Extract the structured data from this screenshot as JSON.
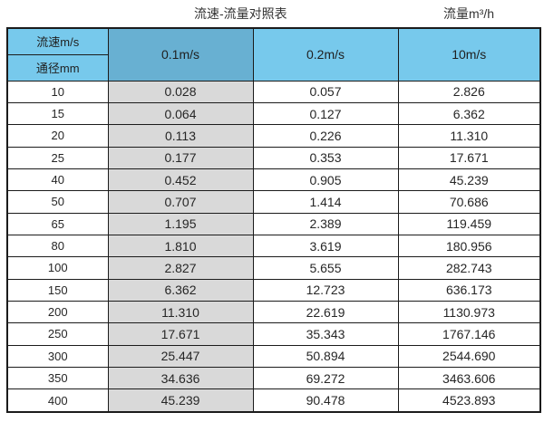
{
  "page": {
    "title_main": "流速-流量对照表",
    "title_right": "流量m³/h"
  },
  "table": {
    "corner": {
      "top": "流速m/s",
      "bottom": "通径mm"
    },
    "velocity_columns": [
      "0.1m/s",
      "0.2m/s",
      "10m/s"
    ],
    "rows": [
      {
        "diameter": "10",
        "values": [
          "0.028",
          "0.057",
          "2.826"
        ]
      },
      {
        "diameter": "15",
        "values": [
          "0.064",
          "0.127",
          "6.362"
        ]
      },
      {
        "diameter": "20",
        "values": [
          "0.113",
          "0.226",
          "11.310"
        ]
      },
      {
        "diameter": "25",
        "values": [
          "0.177",
          "0.353",
          "17.671"
        ]
      },
      {
        "diameter": "40",
        "values": [
          "0.452",
          "0.905",
          "45.239"
        ]
      },
      {
        "diameter": "50",
        "values": [
          "0.707",
          "1.414",
          "70.686"
        ]
      },
      {
        "diameter": "65",
        "values": [
          "1.195",
          "2.389",
          "119.459"
        ]
      },
      {
        "diameter": "80",
        "values": [
          "1.810",
          "3.619",
          "180.956"
        ]
      },
      {
        "diameter": "100",
        "values": [
          "2.827",
          "5.655",
          "282.743"
        ]
      },
      {
        "diameter": "150",
        "values": [
          "6.362",
          "12.723",
          "636.173"
        ]
      },
      {
        "diameter": "200",
        "values": [
          "11.310",
          "22.619",
          "1130.973"
        ]
      },
      {
        "diameter": "250",
        "values": [
          "17.671",
          "35.343",
          "1767.146"
        ]
      },
      {
        "diameter": "300",
        "values": [
          "25.447",
          "50.894",
          "2544.690"
        ]
      },
      {
        "diameter": "350",
        "values": [
          "34.636",
          "69.272",
          "3463.606"
        ]
      },
      {
        "diameter": "400",
        "values": [
          "45.239",
          "90.478",
          "4523.893"
        ]
      }
    ]
  },
  "colors": {
    "header_blue": "#77c9ec",
    "header_blue_dark": "#68b0d2",
    "column_gray": "#d9d9d9",
    "border": "#1b1b1b"
  },
  "chart_data": {
    "type": "table",
    "title": "流速-流量对照表",
    "unit_label": "流量m³/h",
    "column_header": "流速m/s",
    "row_header": "通径mm",
    "columns": [
      "0.1m/s",
      "0.2m/s",
      "10m/s"
    ],
    "diameters_mm": [
      10,
      15,
      20,
      25,
      40,
      50,
      65,
      80,
      100,
      150,
      200,
      250,
      300,
      350,
      400
    ],
    "flow_rates_m3h": {
      "0.1m/s": [
        0.028,
        0.064,
        0.113,
        0.177,
        0.452,
        0.707,
        1.195,
        1.81,
        2.827,
        6.362,
        11.31,
        17.671,
        25.447,
        34.636,
        45.239
      ],
      "0.2m/s": [
        0.057,
        0.127,
        0.226,
        0.353,
        0.905,
        1.414,
        2.389,
        3.619,
        5.655,
        12.723,
        22.619,
        35.343,
        50.894,
        69.272,
        90.478
      ],
      "10m/s": [
        2.826,
        6.362,
        11.31,
        17.671,
        45.239,
        70.686,
        119.459,
        180.956,
        282.743,
        636.173,
        1130.973,
        1767.146,
        2544.69,
        3463.606,
        4523.893
      ]
    }
  }
}
